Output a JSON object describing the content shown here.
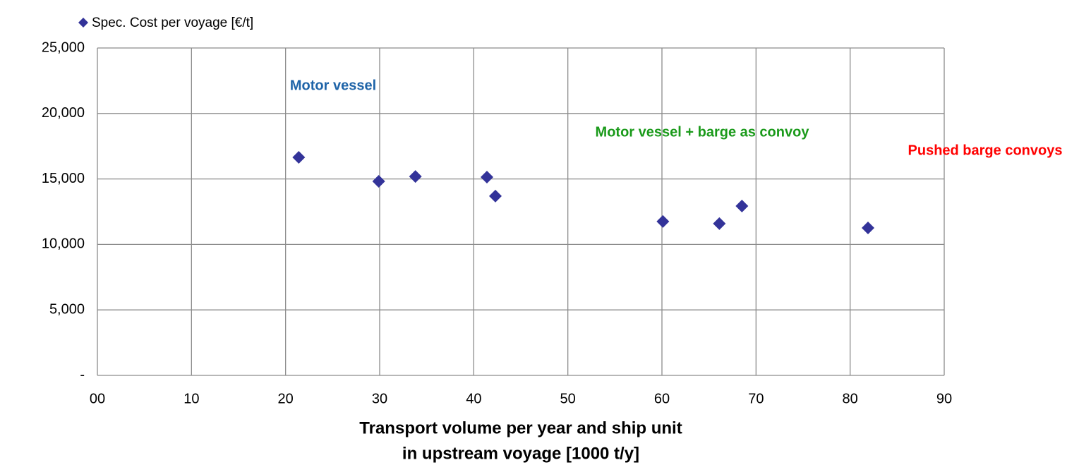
{
  "chart_data": {
    "type": "scatter",
    "series": [
      {
        "name": "Spec. Cost  per voyage [€/t]",
        "color": "#333399",
        "x": [
          21.4,
          29.9,
          33.8,
          41.4,
          42.3,
          60.1,
          66.1,
          68.5,
          81.9
        ],
        "values": [
          16650,
          14820,
          15190,
          15140,
          13690,
          11750,
          11590,
          12930,
          11260
        ]
      }
    ],
    "xlabel": [
      "Transport volume per year and ship unit",
      "in upstream voyage [1000 t/y]"
    ],
    "xlim": [
      0,
      90
    ],
    "xticks": [
      {
        "value": 0,
        "label": "00"
      },
      10,
      20,
      30,
      40,
      50,
      60,
      70,
      80,
      90
    ],
    "ylim": [
      0,
      25000
    ],
    "yticks": [
      {
        "value": 0,
        "label": "-"
      },
      {
        "value": 5000,
        "label": "5,000"
      },
      {
        "value": 10000,
        "label": "10,000"
      },
      {
        "value": 15000,
        "label": "15,000"
      },
      {
        "value": 20000,
        "label": "20,000"
      },
      {
        "value": 25000,
        "label": "25,000"
      }
    ],
    "grid": true,
    "annotations": [
      {
        "text": "Motor vessel",
        "color": "#1f64a8"
      },
      {
        "text": "Motor vessel + barge as convoy",
        "color": "#1a9a1a"
      },
      {
        "text": "Pushed barge convoys",
        "color": "#ff0000"
      }
    ]
  }
}
